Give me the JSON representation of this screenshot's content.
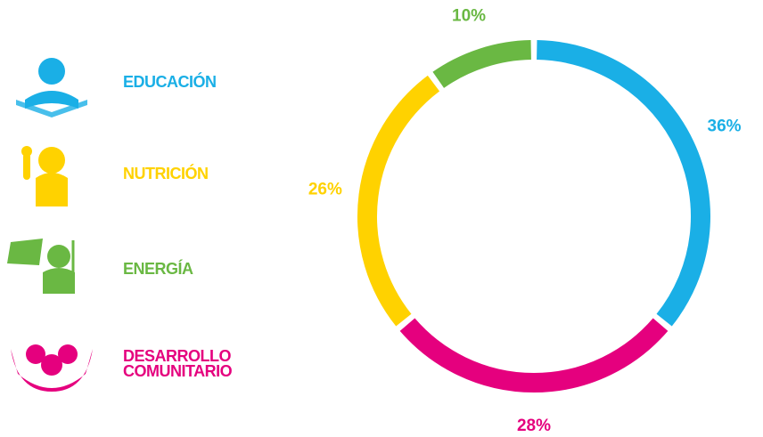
{
  "chart_data": {
    "type": "donut",
    "categories": [
      "EDUCACIÓN",
      "DESARROLLO COMUNITARIO",
      "NUTRICIÓN",
      "ENERGÍA"
    ],
    "values": [
      36,
      28,
      26,
      10
    ],
    "value_labels": [
      "36%",
      "28%",
      "26%",
      "10%"
    ],
    "colors": [
      "#1aafe6",
      "#e5007e",
      "#ffd200",
      "#6ab843"
    ]
  }
}
